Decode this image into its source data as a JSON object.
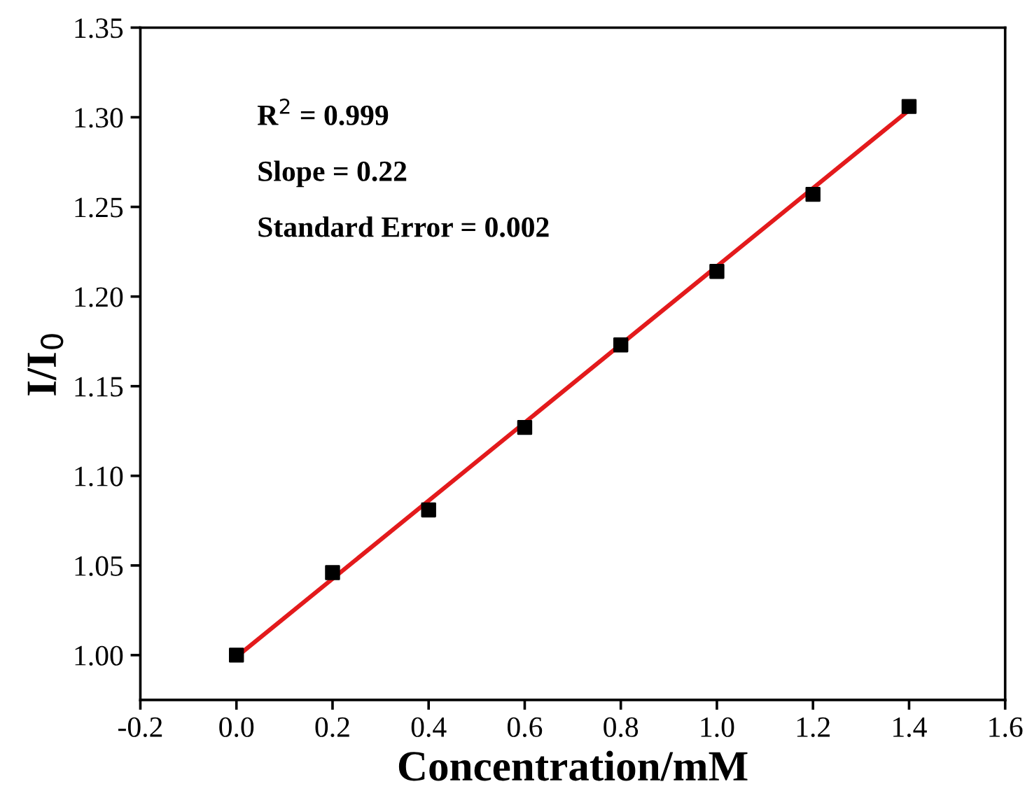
{
  "chart_data": {
    "type": "scatter",
    "xlabel": "Concentration/mM",
    "ylabel": "I/I$_{0}$",
    "series": [
      {
        "color": "#000000",
        "marker": "square",
        "x": [
          0.0,
          0.2,
          0.4,
          0.6,
          0.8,
          1.0,
          1.2,
          1.4
        ],
        "values": [
          1.0,
          1.046,
          1.081,
          1.127,
          1.173,
          1.214,
          1.257,
          1.306
        ]
      },
      {
        "type": "line",
        "color": "#e31a1c",
        "marker": "none",
        "line_style": "solid",
        "x": [
          0.0,
          1.4
        ],
        "values": [
          0.999,
          1.304
        ]
      }
    ],
    "xlim": [
      -0.2,
      1.6
    ],
    "xticks": [
      {
        "value": -0.2,
        "label": "-0.2"
      },
      {
        "value": 0.0,
        "label": "0.0"
      },
      0.2,
      0.4,
      0.6,
      0.8,
      {
        "value": 1.0,
        "label": "1.0"
      },
      1.2,
      1.4,
      1.6
    ],
    "ylim": [
      0.975,
      1.35
    ],
    "yticks": [
      {
        "value": 1.0,
        "label": "1.00"
      },
      1.05,
      {
        "value": 1.1,
        "label": "1.10"
      },
      1.15,
      {
        "value": 1.2,
        "label": "1.20"
      },
      1.25,
      {
        "value": 1.3,
        "label": "1.30"
      },
      1.35
    ],
    "annotations": [
      "R$^{2}$ = 0.999",
      "Slope = 0.22",
      "Standard Error = 0.002"
    ],
    "grid": false
  }
}
